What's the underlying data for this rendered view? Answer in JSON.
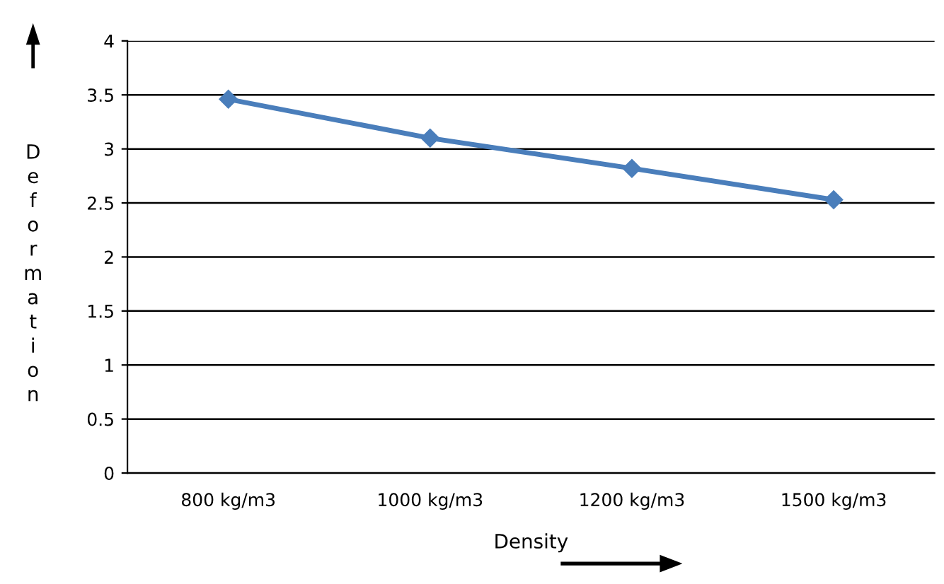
{
  "chart_data": {
    "type": "line",
    "xlabel": "Density",
    "ylabel": "Deformation",
    "categories": [
      "800 kg/m3",
      "1000 kg/m3",
      "1200 kg/m3",
      "1500 kg/m3"
    ],
    "series": [
      {
        "color": "#4a7ebb",
        "values": [
          3.46,
          3.1,
          2.82,
          2.53
        ]
      }
    ],
    "ylim": [
      0,
      4
    ],
    "yticks": [
      0,
      0.5,
      1,
      1.5,
      2,
      2.5,
      3,
      3.5,
      4
    ],
    "grid": "y",
    "marker": "diamond",
    "line_style": "solid",
    "legend": false
  }
}
